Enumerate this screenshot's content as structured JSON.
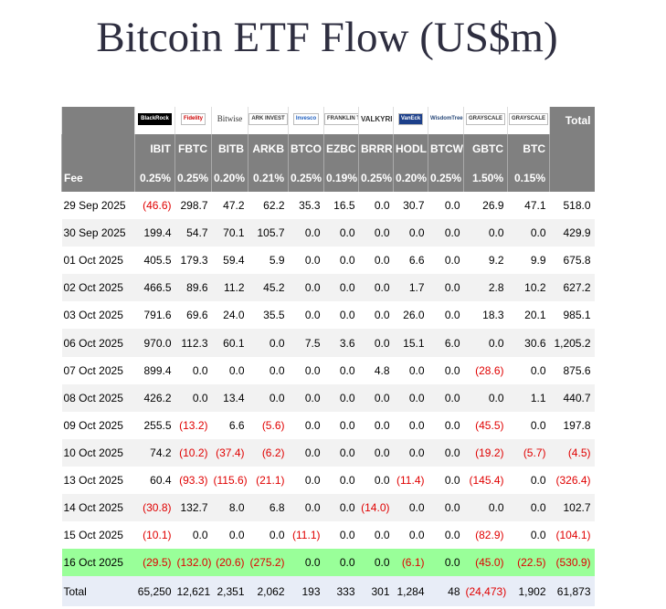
{
  "header": {
    "title": "Bitcoin ETF Flow (US$m)"
  },
  "table": {
    "logos": [
      "BlackRock",
      "Fidelity",
      "Bitwise",
      "ARK INVEST",
      "Invesco",
      "FRANKLIN TEMPLETON",
      "VALKYRIE",
      "VanEck",
      "WisdomTree",
      "GRAYSCALE",
      "GRAYSCALE"
    ],
    "total_header": "Total",
    "tickers": [
      "IBIT",
      "FBTC",
      "BITB",
      "ARKB",
      "BTCO",
      "EZBC",
      "BRRR",
      "HODL",
      "BTCW",
      "GBTC",
      "BTC"
    ],
    "fee": [
      "Fee",
      "0.25%",
      "0.25%",
      "0.20%",
      "0.21%",
      "0.25%",
      "0.19%",
      "0.25%",
      "0.20%",
      "0.25%",
      "1.50%",
      "0.15%"
    ],
    "rows": [
      [
        "29 Sep 2025",
        "(46.6)",
        "298.7",
        "47.2",
        "62.2",
        "35.3",
        "16.5",
        "0.0",
        "30.7",
        "0.0",
        "26.9",
        "47.1",
        "518.0"
      ],
      [
        "30 Sep 2025",
        "199.4",
        "54.7",
        "70.1",
        "105.7",
        "0.0",
        "0.0",
        "0.0",
        "0.0",
        "0.0",
        "0.0",
        "0.0",
        "429.9"
      ],
      [
        "01 Oct 2025",
        "405.5",
        "179.3",
        "59.4",
        "5.9",
        "0.0",
        "0.0",
        "0.0",
        "6.6",
        "0.0",
        "9.2",
        "9.9",
        "675.8"
      ],
      [
        "02 Oct 2025",
        "466.5",
        "89.6",
        "11.2",
        "45.2",
        "0.0",
        "0.0",
        "0.0",
        "1.7",
        "0.0",
        "2.8",
        "10.2",
        "627.2"
      ],
      [
        "03 Oct 2025",
        "791.6",
        "69.6",
        "24.0",
        "35.5",
        "0.0",
        "0.0",
        "0.0",
        "26.0",
        "0.0",
        "18.3",
        "20.1",
        "985.1"
      ],
      [
        "06 Oct 2025",
        "970.0",
        "112.3",
        "60.1",
        "0.0",
        "7.5",
        "3.6",
        "0.0",
        "15.1",
        "6.0",
        "0.0",
        "30.6",
        "1,205.2"
      ],
      [
        "07 Oct 2025",
        "899.4",
        "0.0",
        "0.0",
        "0.0",
        "0.0",
        "0.0",
        "4.8",
        "0.0",
        "0.0",
        "(28.6)",
        "0.0",
        "875.6"
      ],
      [
        "08 Oct 2025",
        "426.2",
        "0.0",
        "13.4",
        "0.0",
        "0.0",
        "0.0",
        "0.0",
        "0.0",
        "0.0",
        "0.0",
        "1.1",
        "440.7"
      ],
      [
        "09 Oct 2025",
        "255.5",
        "(13.2)",
        "6.6",
        "(5.6)",
        "0.0",
        "0.0",
        "0.0",
        "0.0",
        "0.0",
        "(45.5)",
        "0.0",
        "197.8"
      ],
      [
        "10 Oct 2025",
        "74.2",
        "(10.2)",
        "(37.4)",
        "(6.2)",
        "0.0",
        "0.0",
        "0.0",
        "0.0",
        "0.0",
        "(19.2)",
        "(5.7)",
        "(4.5)"
      ],
      [
        "13 Oct 2025",
        "60.4",
        "(93.3)",
        "(115.6)",
        "(21.1)",
        "0.0",
        "0.0",
        "0.0",
        "(11.4)",
        "0.0",
        "(145.4)",
        "0.0",
        "(326.4)"
      ],
      [
        "14 Oct 2025",
        "(30.8)",
        "132.7",
        "8.0",
        "6.8",
        "0.0",
        "0.0",
        "(14.0)",
        "0.0",
        "0.0",
        "0.0",
        "0.0",
        "102.7"
      ],
      [
        "15 Oct 2025",
        "(10.1)",
        "0.0",
        "0.0",
        "0.0",
        "(11.1)",
        "0.0",
        "0.0",
        "0.0",
        "0.0",
        "(82.9)",
        "0.0",
        "(104.1)"
      ],
      [
        "16 Oct 2025",
        "(29.5)",
        "(132.0)",
        "(20.6)",
        "(275.2)",
        "0.0",
        "0.0",
        "0.0",
        "(6.1)",
        "0.0",
        "(45.0)",
        "(22.5)",
        "(530.9)"
      ]
    ],
    "total": [
      "Total",
      "65,250",
      "12,621",
      "2,351",
      "2,062",
      "193",
      "333",
      "301",
      "1,284",
      "48",
      "(24,473)",
      "1,902",
      "61,873"
    ]
  }
}
